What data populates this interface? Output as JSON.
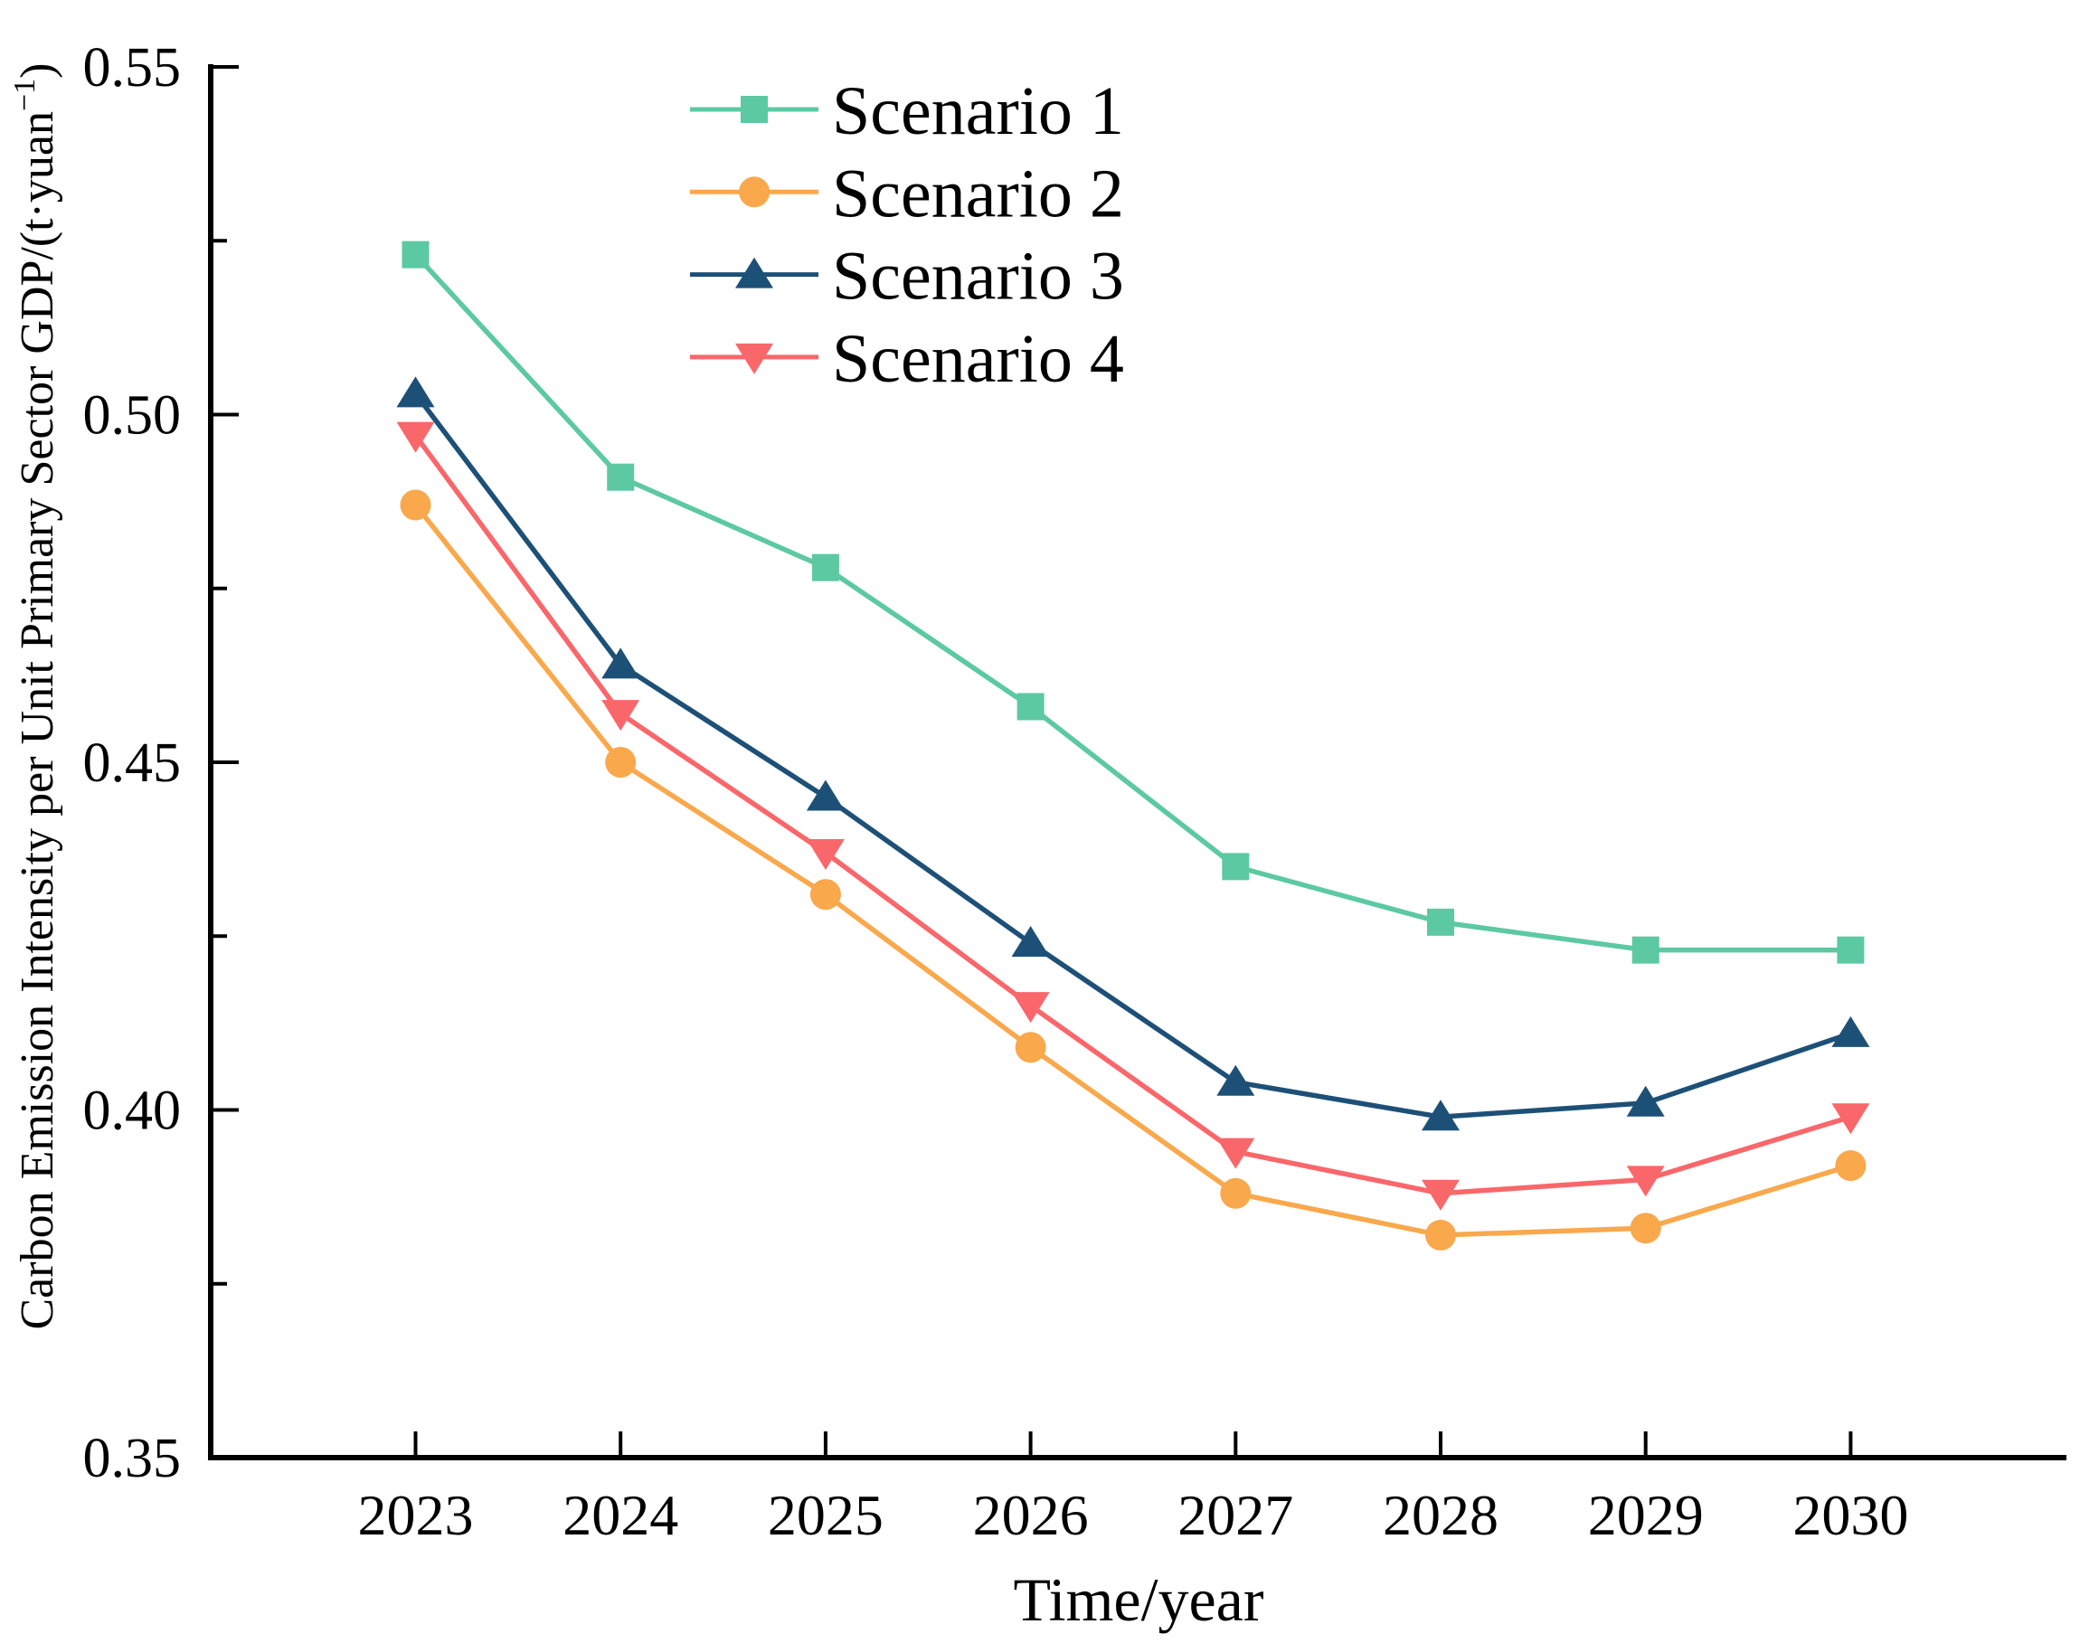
{
  "figure": {
    "background": "#ffffff",
    "axis_color": "#000000"
  },
  "chart_data": {
    "type": "line",
    "title": "",
    "xlabel": "Time/year",
    "ylabel": "Carbon Emission Intensity per Unit Primary Sector GDP/(t·yuan⁻¹)",
    "ylabel_parts": {
      "prefix": "Carbon Emission Intensity per Unit Primary Sector GDP/(t·yuan",
      "superscript": "−1",
      "suffix": ")"
    },
    "categories": [
      "2023",
      "2024",
      "2025",
      "2026",
      "2027",
      "2028",
      "2029",
      "2030"
    ],
    "ylim": [
      0.35,
      0.55
    ],
    "ytick_labels": [
      "0.35",
      "0.40",
      "0.45",
      "0.50",
      "0.55"
    ],
    "ytick_values": [
      0.35,
      0.4,
      0.45,
      0.5,
      0.55
    ],
    "minor_ytick_values": [
      0.375,
      0.425,
      0.475,
      0.525
    ],
    "grid": false,
    "legend_position": "upper-left-inside",
    "series": [
      {
        "name": "Scenario 1",
        "marker": "square",
        "color": "#5cc9a2",
        "values": [
          0.523,
          0.491,
          0.478,
          0.458,
          0.435,
          0.427,
          0.423,
          0.423
        ]
      },
      {
        "name": "Scenario 2",
        "marker": "circle",
        "color": "#f9a84c",
        "values": [
          0.487,
          0.45,
          0.431,
          0.409,
          0.388,
          0.382,
          0.383,
          0.392
        ]
      },
      {
        "name": "Scenario 3",
        "marker": "triangle-up",
        "color": "#1d5077",
        "values": [
          0.503,
          0.464,
          0.445,
          0.424,
          0.404,
          0.399,
          0.401,
          0.411
        ]
      },
      {
        "name": "Scenario 4",
        "marker": "triangle-down",
        "color": "#f9676b",
        "values": [
          0.497,
          0.457,
          0.437,
          0.415,
          0.394,
          0.388,
          0.39,
          0.399
        ]
      }
    ]
  }
}
